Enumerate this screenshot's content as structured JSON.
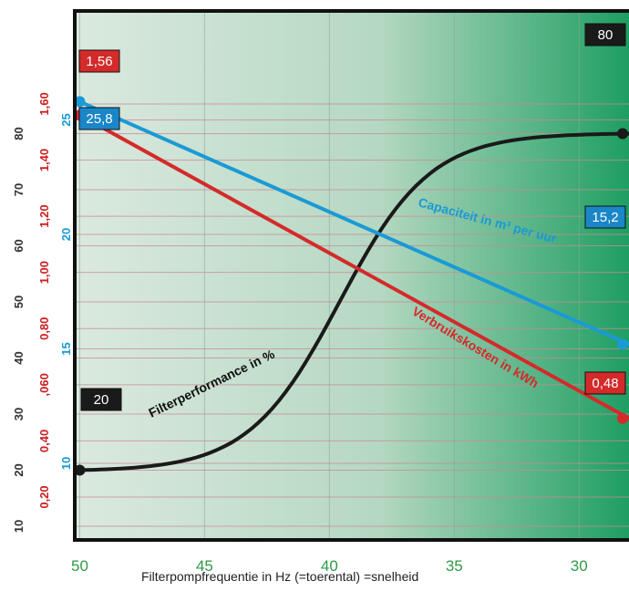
{
  "chart_data": {
    "type": "line",
    "xlabel": "Filterpompfrequentie in Hz (=toerental) =snelheid",
    "x_axis": {
      "ticks": [
        50,
        45,
        40,
        35,
        30
      ],
      "range": [
        50.2,
        28
      ],
      "reversed": true,
      "tick_color": "#2e9a45"
    },
    "y_axes": [
      {
        "id": "pct",
        "color": "#333333",
        "ticks": [
          "10",
          "20",
          "30",
          "40",
          "50",
          "60",
          "70",
          "80"
        ],
        "tick_values": [
          10,
          20,
          30,
          40,
          50,
          60,
          70,
          80
        ]
      },
      {
        "id": "kwh",
        "color": "#cc2020",
        "ticks": [
          "0,20",
          "0,40",
          ",060",
          "0,80",
          "1,00",
          "1,20",
          "1,40",
          "1,60"
        ],
        "tick_values": [
          0.2,
          0.4,
          0.6,
          0.8,
          1.0,
          1.2,
          1.4,
          1.6
        ]
      },
      {
        "id": "m3",
        "color": "#1a9ad6",
        "ticks": [
          "10",
          "15",
          "20",
          "25"
        ],
        "tick_values": [
          10,
          15,
          20,
          25
        ]
      }
    ],
    "grid": true,
    "background": {
      "left": "#dbe9df",
      "right": "#1e9e62"
    },
    "series": [
      {
        "axis": "pct",
        "color": "#1a1a1a",
        "curve": "sigmoid",
        "start": {
          "x": 50,
          "y": 20
        },
        "end": {
          "x": 28,
          "y": 80
        },
        "start_label": "20",
        "end_label": "80",
        "name": "Filterperformance in %"
      },
      {
        "axis": "kwh",
        "color": "#d42a2a",
        "curve": "linear",
        "start": {
          "x": 50,
          "y": 1.56
        },
        "end": {
          "x": 28,
          "y": 0.48
        },
        "start_label": "1,56",
        "end_label": "0,48",
        "name": "Verbruikskosten in kWh"
      },
      {
        "axis": "m3",
        "color": "#1a9ad6",
        "curve": "linear",
        "start": {
          "x": 50,
          "y": 25.8
        },
        "end": {
          "x": 28,
          "y": 15.2
        },
        "start_label": "25,8",
        "end_label": "15,2",
        "name": "Capaciteit in m³ per uur"
      }
    ]
  }
}
